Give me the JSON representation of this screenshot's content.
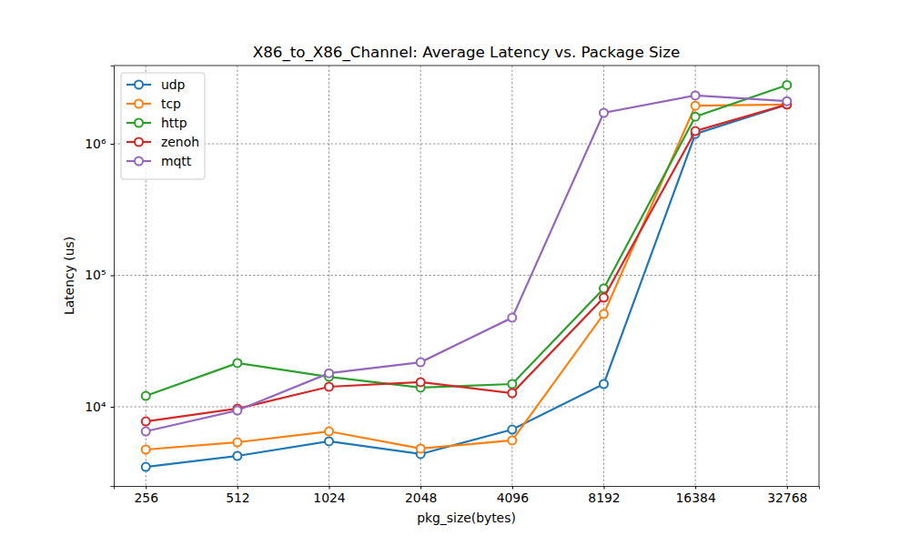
{
  "chart_data": {
    "type": "line",
    "title": "X86_to_X86_Channel: Average Latency vs. Package Size",
    "x_label": "pkg_size(bytes)",
    "y_label": "Latency (us)",
    "categories": [
      "256",
      "512",
      "1024",
      "2048",
      "4096",
      "8192",
      "16384",
      "32768"
    ],
    "series": [
      {
        "name": "udp",
        "color": "#1f77b4",
        "values": [
          3490,
          4230,
          5460,
          4370,
          6710,
          14900,
          1190000,
          1990000
        ]
      },
      {
        "name": "tcp",
        "color": "#ff7f0e",
        "values": [
          4730,
          5370,
          6500,
          4810,
          5550,
          50800,
          1950000,
          1990000
        ]
      },
      {
        "name": "http",
        "color": "#2ca02c",
        "values": [
          12100,
          21500,
          16900,
          14000,
          14900,
          79400,
          1610000,
          2800000
        ]
      },
      {
        "name": "zenoh",
        "color": "#d62728",
        "values": [
          7740,
          9680,
          14200,
          15400,
          12700,
          67600,
          1250000,
          1990000
        ]
      },
      {
        "name": "mqtt",
        "color": "#9467bd",
        "values": [
          6500,
          9380,
          18000,
          21800,
          47600,
          1720000,
          2330000,
          2110000
        ]
      }
    ],
    "ylim": [
      2500,
      3940000
    ],
    "yticks": [
      {
        "value": 10000,
        "label": "10⁴"
      },
      {
        "value": 100000,
        "label": "10⁵"
      },
      {
        "value": 1000000,
        "label": "10⁶"
      }
    ],
    "log": "y",
    "grid": true,
    "legend": "upper left",
    "marker": "circle"
  }
}
